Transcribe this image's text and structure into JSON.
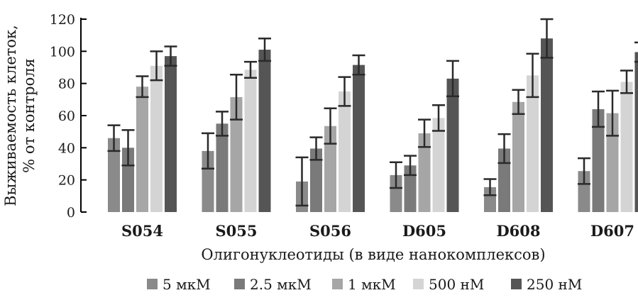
{
  "chart_data": {
    "type": "bar",
    "ylabel_line1": "Выживаемость клеток,",
    "ylabel_line2": "% от контроля",
    "xlabel": "Олигонуклеотиды (в виде нанокомплексов)",
    "ylim": [
      0,
      120
    ],
    "yticks": [
      "0",
      "20",
      "40",
      "60",
      "80",
      "100",
      "120"
    ],
    "grid": false,
    "legend_position": "bottom",
    "categories": [
      "S054",
      "S055",
      "S056",
      "D605",
      "D608",
      "D607"
    ],
    "series": [
      {
        "name": "5 мкМ",
        "color": "#8a8a8a",
        "values": [
          46,
          38,
          19,
          23,
          15.5,
          25.5
        ],
        "errors": [
          8,
          11,
          15,
          8,
          5,
          8
        ]
      },
      {
        "name": "2.5 мкМ",
        "color": "#7a7a7a",
        "values": [
          40,
          55,
          39.5,
          29,
          39.5,
          64
        ],
        "errors": [
          11,
          7.5,
          7,
          6,
          9,
          11
        ]
      },
      {
        "name": "1 мкМ",
        "color": "#a6a6a6",
        "values": [
          78,
          71.5,
          53.5,
          49,
          68.5,
          61.5
        ],
        "errors": [
          6.5,
          14,
          11,
          8.5,
          7.5,
          14
        ]
      },
      {
        "name": "500 нМ",
        "color": "#d4d4d4",
        "values": [
          91,
          88.5,
          75,
          58.5,
          85,
          81
        ],
        "errors": [
          9,
          5,
          9,
          8,
          13.5,
          7
        ]
      },
      {
        "name": "250 нМ",
        "color": "#555555",
        "values": [
          97,
          101,
          91.5,
          83,
          108,
          99.5
        ],
        "errors": [
          6,
          7,
          6,
          11,
          12,
          6
        ]
      }
    ]
  }
}
